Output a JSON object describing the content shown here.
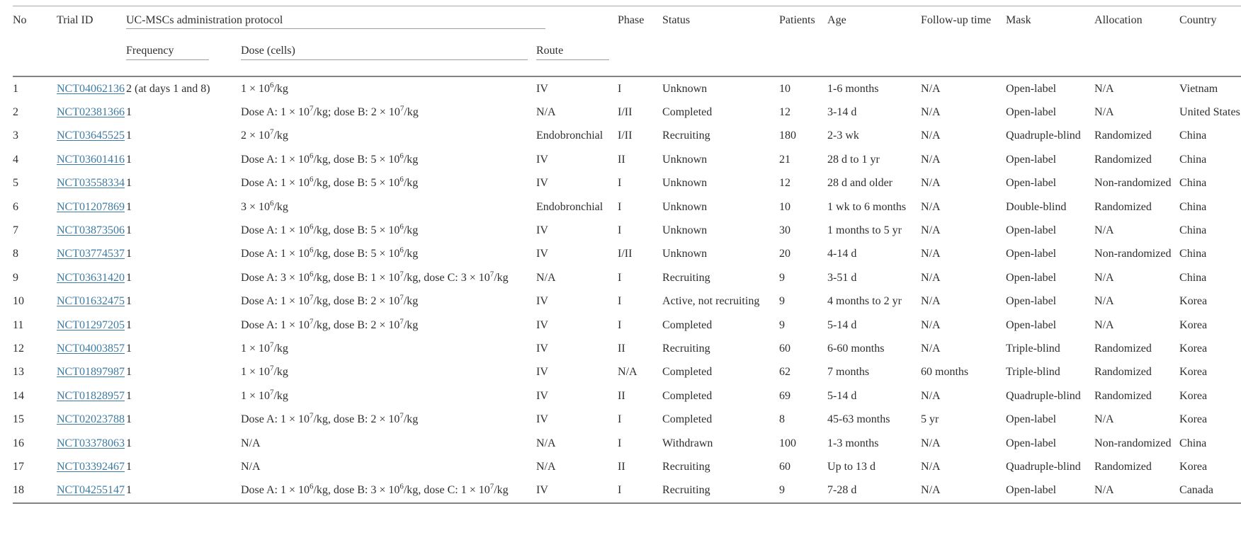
{
  "table": {
    "link_color": "#3d7ba3",
    "headers": {
      "no": "No",
      "trial_id": "Trial ID",
      "protocol_group": "UC-MSCs administration protocol",
      "frequency": "Frequency",
      "dose": "Dose (cells)",
      "route": "Route",
      "phase": "Phase",
      "status": "Status",
      "patients": "Patients",
      "age": "Age",
      "follow_up": "Follow-up time",
      "mask": "Mask",
      "allocation": "Allocation",
      "country": "Country"
    },
    "rows": [
      {
        "no": "1",
        "trial_id": "NCT04062136",
        "frequency": "2 (at days 1 and 8)",
        "dose": "1 × 10^6/kg",
        "route": "IV",
        "phase": "I",
        "status": "Unknown",
        "patients": "10",
        "age": "1-6 months",
        "follow_up": "N/A",
        "mask": "Open-label",
        "allocation": "N/A",
        "country": "Vietnam"
      },
      {
        "no": "2",
        "trial_id": "NCT02381366",
        "frequency": "1",
        "dose": "Dose A: 1 × 10^7/kg; dose B: 2 × 10^7/kg",
        "route": "N/A",
        "phase": "I/II",
        "status": "Completed",
        "patients": "12",
        "age": "3-14 d",
        "follow_up": "N/A",
        "mask": "Open-label",
        "allocation": "N/A",
        "country": "United States"
      },
      {
        "no": "3",
        "trial_id": "NCT03645525",
        "frequency": "1",
        "dose": "2 × 10^7/kg",
        "route": "Endobronchial",
        "phase": "I/II",
        "status": "Recruiting",
        "patients": "180",
        "age": "2-3 wk",
        "follow_up": "N/A",
        "mask": "Quadruple-blind",
        "allocation": "Randomized",
        "country": "China"
      },
      {
        "no": "4",
        "trial_id": "NCT03601416",
        "frequency": "1",
        "dose": "Dose A: 1 × 10^6/kg, dose B: 5 × 10^6/kg",
        "route": "IV",
        "phase": "II",
        "status": "Unknown",
        "patients": "21",
        "age": "28 d to 1 yr",
        "follow_up": "N/A",
        "mask": "Open-label",
        "allocation": "Randomized",
        "country": "China"
      },
      {
        "no": "5",
        "trial_id": "NCT03558334",
        "frequency": "1",
        "dose": "Dose A: 1 × 10^6/kg, dose B: 5 × 10^6/kg",
        "route": "IV",
        "phase": "I",
        "status": "Unknown",
        "patients": "12",
        "age": "28 d and older",
        "follow_up": "N/A",
        "mask": "Open-label",
        "allocation": "Non-randomized",
        "country": "China"
      },
      {
        "no": "6",
        "trial_id": "NCT01207869",
        "frequency": "1",
        "dose": "3 × 10^6/kg",
        "route": "Endobronchial",
        "phase": "I",
        "status": "Unknown",
        "patients": "10",
        "age": "1 wk to 6 months",
        "follow_up": "N/A",
        "mask": "Double-blind",
        "allocation": "Randomized",
        "country": "China"
      },
      {
        "no": "7",
        "trial_id": "NCT03873506",
        "frequency": "1",
        "dose": "Dose A: 1 × 10^6/kg, dose B: 5 × 10^6/kg",
        "route": "IV",
        "phase": "I",
        "status": "Unknown",
        "patients": "30",
        "age": "1 months to 5 yr",
        "follow_up": "N/A",
        "mask": "Open-label",
        "allocation": "N/A",
        "country": "China"
      },
      {
        "no": "8",
        "trial_id": "NCT03774537",
        "frequency": "1",
        "dose": "Dose A: 1 × 10^6/kg, dose B: 5 × 10^6/kg",
        "route": "IV",
        "phase": "I/II",
        "status": "Unknown",
        "patients": "20",
        "age": "4-14 d",
        "follow_up": "N/A",
        "mask": "Open-label",
        "allocation": "Non-randomized",
        "country": "China"
      },
      {
        "no": "9",
        "trial_id": "NCT03631420",
        "frequency": "1",
        "dose": "Dose A: 3 × 10^6/kg, dose B: 1 × 10^7/kg, dose C: 3 × 10^7/kg",
        "route": "N/A",
        "phase": "I",
        "status": "Recruiting",
        "patients": "9",
        "age": "3-51 d",
        "follow_up": "N/A",
        "mask": "Open-label",
        "allocation": "N/A",
        "country": "China"
      },
      {
        "no": "10",
        "trial_id": "NCT01632475",
        "frequency": "1",
        "dose": "Dose A: 1 × 10^7/kg, dose B: 2 × 10^7/kg",
        "route": "IV",
        "phase": "I",
        "status": "Active, not recruiting",
        "patients": "9",
        "age": "4 months to 2 yr",
        "follow_up": "N/A",
        "mask": "Open-label",
        "allocation": "N/A",
        "country": "Korea"
      },
      {
        "no": "11",
        "trial_id": "NCT01297205",
        "frequency": "1",
        "dose": "Dose A: 1 × 10^7/kg, dose B: 2 × 10^7/kg",
        "route": "IV",
        "phase": "I",
        "status": "Completed",
        "patients": "9",
        "age": "5-14 d",
        "follow_up": "N/A",
        "mask": "Open-label",
        "allocation": "N/A",
        "country": "Korea"
      },
      {
        "no": "12",
        "trial_id": "NCT04003857",
        "frequency": "1",
        "dose": "1 × 10^7/kg",
        "route": "IV",
        "phase": "II",
        "status": "Recruiting",
        "patients": "60",
        "age": "6-60 months",
        "follow_up": "N/A",
        "mask": "Triple-blind",
        "allocation": "Randomized",
        "country": "Korea"
      },
      {
        "no": "13",
        "trial_id": "NCT01897987",
        "frequency": "1",
        "dose": "1 × 10^7/kg",
        "route": "IV",
        "phase": "N/A",
        "status": "Completed",
        "patients": "62",
        "age": "7 months",
        "follow_up": "60 months",
        "mask": "Triple-blind",
        "allocation": "Randomized",
        "country": "Korea"
      },
      {
        "no": "14",
        "trial_id": "NCT01828957",
        "frequency": "1",
        "dose": "1 × 10^7/kg",
        "route": "IV",
        "phase": "II",
        "status": "Completed",
        "patients": "69",
        "age": "5-14 d",
        "follow_up": "N/A",
        "mask": "Quadruple-blind",
        "allocation": "Randomized",
        "country": "Korea"
      },
      {
        "no": "15",
        "trial_id": "NCT02023788",
        "frequency": "1",
        "dose": "Dose A: 1 × 10^7/kg, dose B: 2 × 10^7/kg",
        "route": "IV",
        "phase": "I",
        "status": "Completed",
        "patients": "8",
        "age": "45-63 months",
        "follow_up": "5 yr",
        "mask": "Open-label",
        "allocation": "N/A",
        "country": "Korea"
      },
      {
        "no": "16",
        "trial_id": "NCT03378063",
        "frequency": "1",
        "dose": "N/A",
        "route": "N/A",
        "phase": "I",
        "status": "Withdrawn",
        "patients": "100",
        "age": "1-3 months",
        "follow_up": "N/A",
        "mask": "Open-label",
        "allocation": "Non-randomized",
        "country": "China"
      },
      {
        "no": "17",
        "trial_id": "NCT03392467",
        "frequency": "1",
        "dose": "N/A",
        "route": "N/A",
        "phase": "II",
        "status": "Recruiting",
        "patients": "60",
        "age": "Up to 13 d",
        "follow_up": "N/A",
        "mask": "Quadruple-blind",
        "allocation": "Randomized",
        "country": "Korea"
      },
      {
        "no": "18",
        "trial_id": "NCT04255147",
        "frequency": "1",
        "dose": "Dose A: 1 × 10^6/kg, dose B: 3 × 10^6/kg, dose C: 1 × 10^7/kg",
        "route": "IV",
        "phase": "I",
        "status": "Recruiting",
        "patients": "9",
        "age": "7-28 d",
        "follow_up": "N/A",
        "mask": "Open-label",
        "allocation": "N/A",
        "country": "Canada"
      }
    ]
  }
}
